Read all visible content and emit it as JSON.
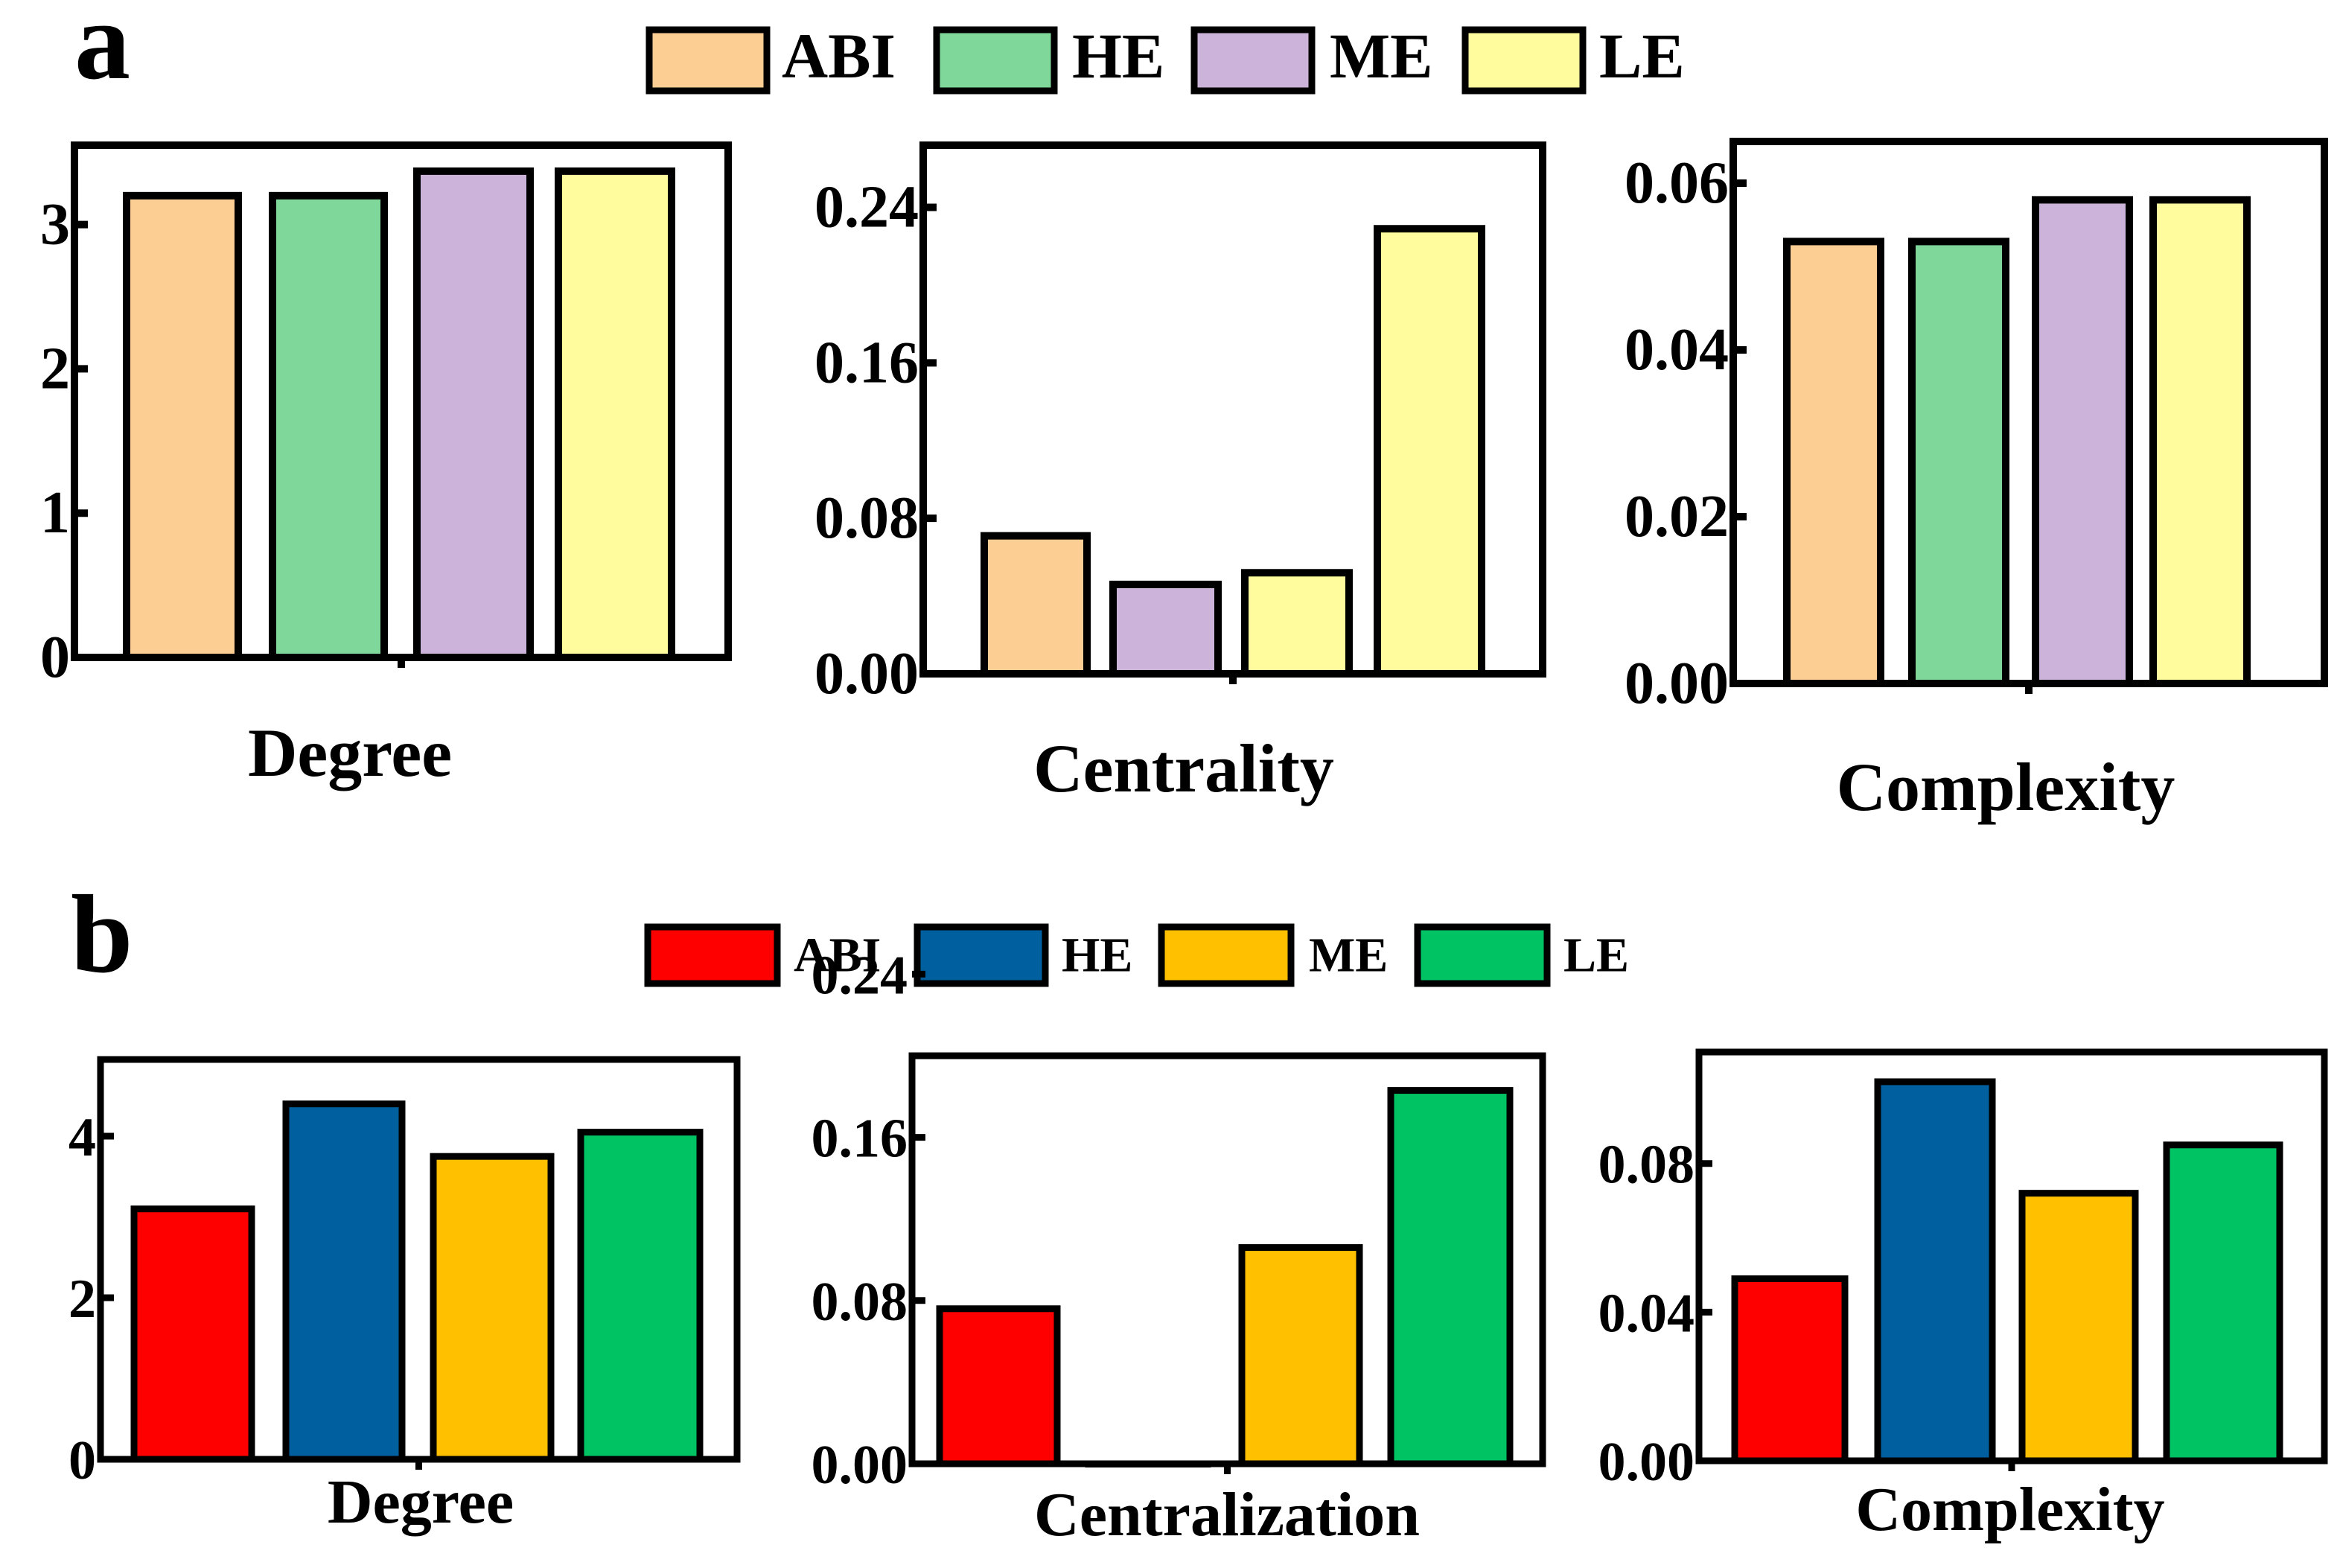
{
  "panels": [
    {
      "letter": "a",
      "legend": [
        {
          "label": "ABI",
          "color": "#FDCE93"
        },
        {
          "label": "HE",
          "color": "#7FD89A"
        },
        {
          "label": "ME",
          "color": "#CBB3DA"
        },
        {
          "label": "LE",
          "color": "#FFFC9D"
        }
      ]
    },
    {
      "letter": "b",
      "legend": [
        {
          "label": "ABI",
          "color": "#FF0000"
        },
        {
          "label": "HE",
          "color": "#00609F"
        },
        {
          "label": "ME",
          "color": "#FFC000"
        },
        {
          "label": "LE",
          "color": "#00C364"
        }
      ]
    }
  ],
  "chart_data": [
    {
      "panel": "a",
      "type": "bar",
      "title": "",
      "xlabel": "Degree",
      "ylabel": "",
      "categories": [
        "ABI",
        "HE",
        "ME",
        "LE"
      ],
      "values": [
        3.2,
        3.2,
        3.37,
        3.37
      ],
      "colors": [
        "#FDCE93",
        "#7FD89A",
        "#CBB3DA",
        "#FFFC9D"
      ],
      "ylim": [
        0,
        3.55
      ],
      "ticks": [
        0,
        1,
        2,
        3
      ],
      "tick_labels": [
        "0",
        "1",
        "2",
        "3"
      ]
    },
    {
      "panel": "a",
      "type": "bar",
      "title": "",
      "xlabel": "Centrality",
      "ylabel": "",
      "categories": [
        "ABI",
        "ME",
        "LE",
        "LE"
      ],
      "values": [
        0.071,
        0.046,
        0.052,
        0.229
      ],
      "colors": [
        "#FDCE93",
        "#CBB3DA",
        "#FFFC9D",
        "#FFFC9D"
      ],
      "ylim": [
        0,
        0.272
      ],
      "ticks": [
        0,
        0.08,
        0.16,
        0.24
      ],
      "tick_labels": [
        "0.00",
        "0.08",
        "0.16",
        "0.24"
      ]
    },
    {
      "panel": "a",
      "type": "bar",
      "title": "",
      "xlabel": "Complexity",
      "ylabel": "",
      "categories": [
        "ABI",
        "HE",
        "ME",
        "LE"
      ],
      "values": [
        0.053,
        0.053,
        0.058,
        0.058
      ],
      "colors": [
        "#FDCE93",
        "#7FD89A",
        "#CBB3DA",
        "#FFFC9D"
      ],
      "ylim": [
        0,
        0.065
      ],
      "ticks": [
        0,
        0.02,
        0.04,
        0.06
      ],
      "tick_labels": [
        "0.00",
        "0.02",
        "0.04",
        "0.06"
      ]
    },
    {
      "panel": "b",
      "type": "bar",
      "title": "",
      "xlabel": "Degree",
      "ylabel": "",
      "categories": [
        "ABI",
        "HE",
        "ME",
        "LE"
      ],
      "values": [
        3.1,
        4.4,
        3.75,
        4.05
      ],
      "colors": [
        "#FF0000",
        "#00609F",
        "#FFC000",
        "#00C364"
      ],
      "ylim": [
        0,
        4.95
      ],
      "ticks": [
        0,
        2,
        4
      ],
      "tick_labels": [
        "0",
        "2",
        "4"
      ]
    },
    {
      "panel": "b",
      "type": "bar",
      "title": "",
      "xlabel": "Centralization",
      "ylabel": "",
      "categories": [
        "ABI",
        "HE",
        "ME",
        "LE"
      ],
      "values": [
        0.076,
        0.0,
        0.106,
        0.183
      ],
      "colors": [
        "#FF0000",
        "#00609F",
        "#FFC000",
        "#00C364"
      ],
      "ylim": [
        0,
        0.2
      ],
      "ticks": [
        0,
        0.08,
        0.16,
        0.24
      ],
      "tick_labels": [
        "0.00",
        "0.08",
        "0.16",
        "0.24"
      ]
    },
    {
      "panel": "b",
      "type": "bar",
      "title": "",
      "xlabel": "Complexity",
      "ylabel": "",
      "categories": [
        "ABI",
        "HE",
        "ME",
        "LE"
      ],
      "values": [
        0.049,
        0.102,
        0.072,
        0.085
      ],
      "colors": [
        "#FF0000",
        "#00609F",
        "#FFC000",
        "#00C364"
      ],
      "ylim": [
        0,
        0.11
      ],
      "ticks": [
        0,
        0.04,
        0.08
      ],
      "tick_labels": [
        "0.00",
        "0.04",
        "0.08"
      ]
    }
  ]
}
